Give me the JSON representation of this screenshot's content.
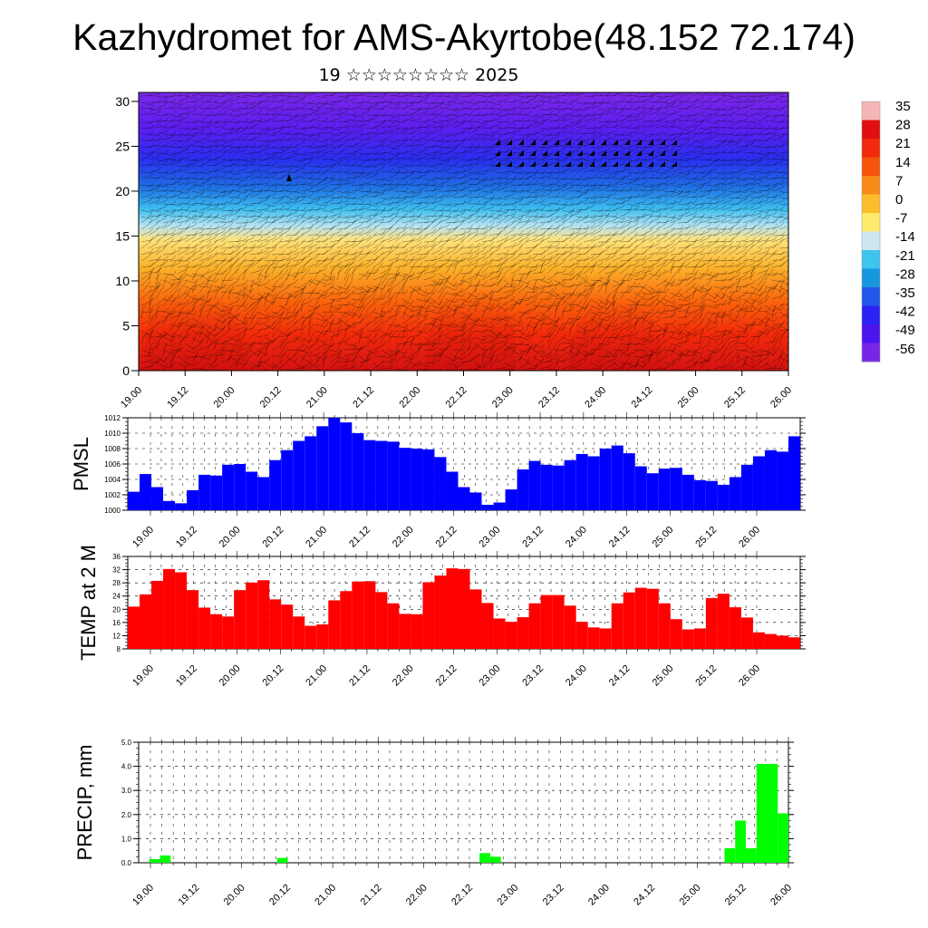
{
  "header": {
    "title": "Kazhydromet for AMS-Akyrtobe(48.152 72.174)",
    "subtitle": "19 ☆☆☆☆☆☆☆☆ 2025"
  },
  "colorbar": {
    "labels": [
      "35",
      "28",
      "21",
      "14",
      "7",
      "0",
      "-7",
      "-14",
      "-21",
      "-28",
      "-35",
      "-42",
      "-49",
      "-56"
    ],
    "colors": [
      "#f4b6b6",
      "#e01010",
      "#f02a0a",
      "#f5540a",
      "#f98a1a",
      "#fbbd2c",
      "#fde96a",
      "#cde6f2",
      "#3fc3ef",
      "#1796e0",
      "#1f57e6",
      "#2a23f2",
      "#4d15ee",
      "#7726e8"
    ]
  },
  "chart_data": [
    {
      "type": "heatmap",
      "title": "",
      "x_ticks": [
        "19.00",
        "19.12",
        "20.00",
        "20.12",
        "21.00",
        "21.12",
        "22.00",
        "22.12",
        "23.00",
        "23.12",
        "24.00",
        "24.12",
        "25.00",
        "25.12",
        "26.00"
      ],
      "y_ticks": [
        "0",
        "5",
        "10",
        "15",
        "20",
        "25",
        "30"
      ],
      "ylim": [
        0,
        31
      ],
      "variable": "temperature with wind barbs",
      "color_scale": [
        -56,
        35
      ]
    },
    {
      "type": "line",
      "ylabel": "PMSL",
      "x_ticks": [
        "19.00",
        "19.12",
        "20.00",
        "20.12",
        "21.00",
        "21.12",
        "22.00",
        "22.12",
        "23.00",
        "23.12",
        "24.00",
        "24.12",
        "25.00",
        "25.12",
        "26.00"
      ],
      "y_ticks": [
        "1000",
        "1002",
        "1004",
        "1006",
        "1008",
        "1010",
        "1012"
      ],
      "ylim": [
        1000,
        1012
      ],
      "color": "#0000ff",
      "values": [
        1002.4,
        1004.7,
        1003.0,
        1001.2,
        1000.9,
        1002.6,
        1004.6,
        1004.5,
        1005.9,
        1006.0,
        1005.0,
        1004.3,
        1006.5,
        1007.8,
        1009.0,
        1009.6,
        1010.9,
        1012.0,
        1011.4,
        1010.0,
        1009.1,
        1009.0,
        1008.9,
        1008.1,
        1008.0,
        1007.9,
        1006.9,
        1005.0,
        1003.0,
        1002.3,
        1000.7,
        1001.0,
        1002.7,
        1005.3,
        1006.4,
        1005.9,
        1005.8,
        1006.5,
        1007.3,
        1007.0,
        1008.0,
        1008.4,
        1007.4,
        1005.7,
        1004.8,
        1005.4,
        1005.5,
        1004.6,
        1003.9,
        1003.8,
        1003.3,
        1004.3,
        1005.9,
        1007.0,
        1007.8,
        1007.6,
        1009.6
      ]
    },
    {
      "type": "line",
      "ylabel": "TEMP at 2 M",
      "x_ticks": [
        "19.00",
        "19.12",
        "20.00",
        "20.12",
        "21.00",
        "21.12",
        "22.00",
        "22.12",
        "23.00",
        "23.12",
        "24.00",
        "24.12",
        "25.00",
        "25.12",
        "26.00"
      ],
      "y_ticks": [
        "8",
        "12",
        "16",
        "20",
        "24",
        "28",
        "32",
        "36"
      ],
      "ylim": [
        8,
        36
      ],
      "color": "#ff0000",
      "values": [
        20.8,
        24.5,
        28.6,
        32.2,
        31.2,
        25.8,
        20.5,
        18.5,
        17.8,
        25.8,
        28.1,
        28.8,
        23.0,
        21.4,
        17.8,
        15.0,
        15.4,
        22.7,
        25.5,
        28.4,
        28.5,
        25.2,
        21.8,
        18.6,
        18.5,
        28.2,
        30.2,
        32.4,
        32.2,
        26.0,
        21.9,
        17.2,
        16.2,
        17.6,
        21.8,
        24.3,
        24.3,
        21.1,
        16.2,
        14.5,
        14.2,
        21.8,
        25.1,
        26.5,
        26.2,
        21.8,
        17.0,
        13.9,
        14.2,
        23.4,
        24.7,
        20.6,
        17.5,
        13.0,
        12.5,
        12.0,
        11.5
      ]
    },
    {
      "type": "bar",
      "ylabel": "PRECIP, mm",
      "x_ticks": [
        "19.00",
        "19.12",
        "20.00",
        "20.12",
        "21.00",
        "21.12",
        "22.00",
        "22.12",
        "23.00",
        "23.12",
        "24.00",
        "24.12",
        "25.00",
        "25.12",
        "26.00"
      ],
      "y_ticks": [
        "0.0",
        "1.0",
        "2.0",
        "3.0",
        "4.0",
        "5.0"
      ],
      "ylim": [
        0,
        5
      ],
      "color": "#00ff00",
      "values": [
        0,
        0.15,
        0.3,
        0,
        0,
        0,
        0,
        0,
        0,
        0,
        0,
        0,
        0,
        0.2,
        0,
        0,
        0,
        0,
        0,
        0,
        0,
        0,
        0,
        0,
        0,
        0,
        0,
        0,
        0,
        0,
        0,
        0,
        0.4,
        0.25,
        0,
        0,
        0,
        0,
        0,
        0,
        0,
        0,
        0,
        0,
        0,
        0,
        0,
        0,
        0,
        0,
        0,
        0,
        0,
        0,
        0,
        0.6,
        1.75,
        0.6,
        4.1,
        4.1,
        2.05
      ]
    }
  ]
}
